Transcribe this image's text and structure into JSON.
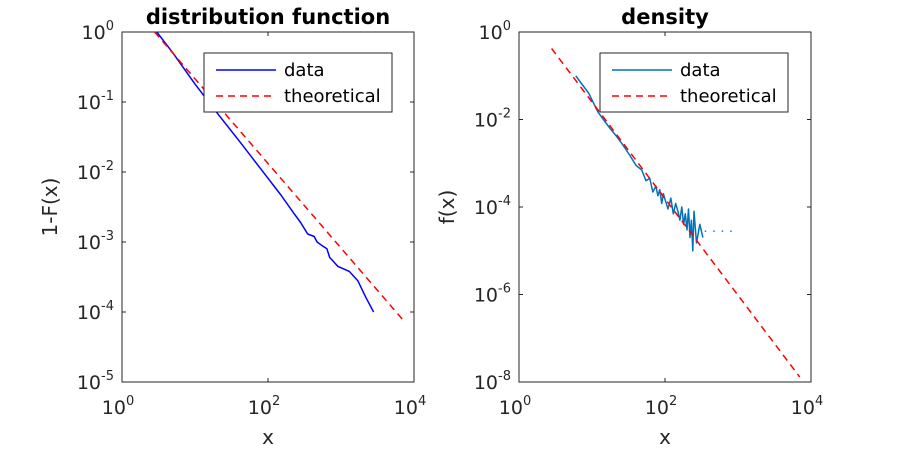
{
  "chart_data": [
    {
      "type": "line",
      "title": "distribution function",
      "xlabel": "x",
      "ylabel": "1-F(x)",
      "xscale": "log",
      "yscale": "log",
      "xlim": [
        1,
        10000
      ],
      "ylim": [
        1e-05,
        1
      ],
      "grid": false,
      "legend_position": "top-right",
      "x_ticks": [
        {
          "base": "10",
          "exp": "0"
        },
        {
          "base": "10",
          "exp": "2"
        },
        {
          "base": "10",
          "exp": "4"
        }
      ],
      "y_ticks": [
        {
          "base": "10",
          "exp": "0"
        },
        {
          "base": "10",
          "exp": "-1"
        },
        {
          "base": "10",
          "exp": "-2"
        },
        {
          "base": "10",
          "exp": "-3"
        },
        {
          "base": "10",
          "exp": "-4"
        },
        {
          "base": "10",
          "exp": "-5"
        }
      ],
      "series": [
        {
          "name": "data",
          "color": "#0000ff",
          "style": "solid",
          "x": [
            3,
            5,
            10,
            20,
            40,
            80,
            150,
            230,
            280,
            350,
            430,
            470,
            540,
            640,
            700,
            760,
            900,
            1300,
            1700,
            2200,
            2800
          ],
          "y": [
            1.0,
            0.5,
            0.18,
            0.07,
            0.028,
            0.011,
            0.0047,
            0.0025,
            0.0019,
            0.0013,
            0.0012,
            0.001,
            0.0009,
            0.0008,
            0.0006,
            0.00055,
            0.00045,
            0.00038,
            0.00028,
            0.00016,
            0.0001
          ]
        },
        {
          "name": "theoretical",
          "color": "#ff0000",
          "style": "dashed",
          "x": [
            2.8,
            7000
          ],
          "y": [
            1.0,
            7.8e-05
          ]
        }
      ]
    },
    {
      "type": "line",
      "title": "density",
      "xlabel": "x",
      "ylabel": "f(x)",
      "xscale": "log",
      "yscale": "log",
      "xlim": [
        1,
        10000
      ],
      "ylim": [
        1e-08,
        1
      ],
      "grid": false,
      "legend_position": "top-right",
      "x_ticks": [
        {
          "base": "10",
          "exp": "0"
        },
        {
          "base": "10",
          "exp": "2"
        },
        {
          "base": "10",
          "exp": "4"
        }
      ],
      "y_ticks": [
        {
          "base": "10",
          "exp": "0"
        },
        {
          "base": "10",
          "exp": "-2"
        },
        {
          "base": "10",
          "exp": "-4"
        },
        {
          "base": "10",
          "exp": "-6"
        },
        {
          "base": "10",
          "exp": "-8"
        }
      ],
      "series": [
        {
          "name": "data",
          "color": "#0072bd",
          "style": "solid",
          "x": [
            6,
            7,
            9,
            12,
            15,
            18,
            22,
            27,
            33,
            40,
            48,
            55,
            62,
            68,
            75,
            80,
            85,
            90,
            95,
            100,
            110,
            120,
            130,
            140,
            150,
            160,
            170,
            180,
            190,
            200,
            210,
            220,
            230,
            240,
            250,
            270,
            300,
            330
          ],
          "y": [
            0.1,
            0.07,
            0.04,
            0.015,
            0.009,
            0.006,
            0.004,
            0.0025,
            0.0015,
            0.0009,
            0.0007,
            0.0004,
            0.00045,
            0.00022,
            0.0003,
            0.00018,
            0.00025,
            0.00012,
            0.0002,
            0.00015,
            9e-05,
            0.00016,
            7e-05,
            0.00012,
            8e-05,
            5e-05,
            0.0001,
            4e-05,
            7e-05,
            3e-05,
            9e-05,
            2e-05,
            5e-05,
            1e-05,
            8e-05,
            1.5e-05,
            4e-05,
            2e-05
          ]
        },
        {
          "name": "",
          "color": "#0072bd",
          "style": "dotted",
          "x": [
            350,
            420,
            500,
            600,
            700,
            850
          ],
          "y": [
            2.8e-05,
            2.8e-05,
            2.8e-05,
            2.8e-05,
            2.8e-05,
            2.8e-05
          ]
        },
        {
          "name": "theoretical",
          "color": "#ff0000",
          "style": "dashed",
          "x": [
            2.8,
            7000
          ],
          "y": [
            0.42,
            1.3e-08
          ]
        }
      ]
    }
  ]
}
